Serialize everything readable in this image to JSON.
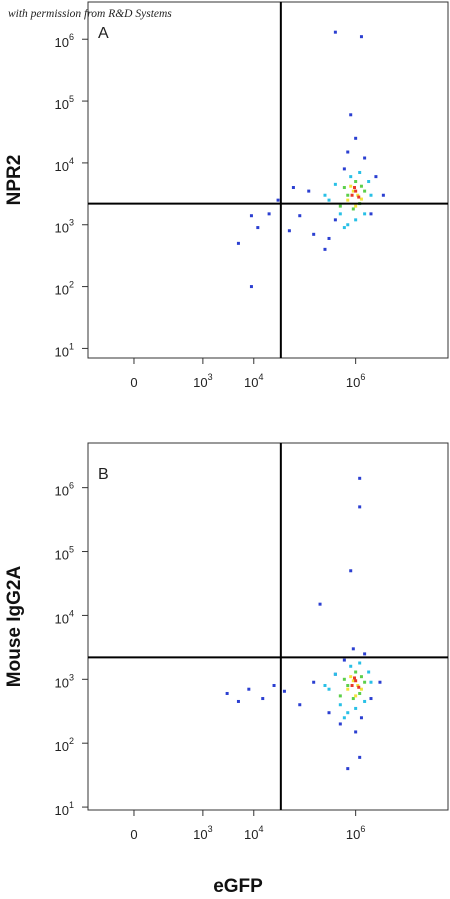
{
  "source_note": "with permission from R&D Systems",
  "chart_data": [
    {
      "type": "scatter",
      "label": "A",
      "y_label": "NPR2",
      "xscale": "asinh",
      "xscale_linear_width": 89,
      "yscale": "log",
      "xlim": [
        -350,
        65000000
      ],
      "ylim": [
        7,
        4000000
      ],
      "xticks": [
        0,
        {
          "value": 1000,
          "label": "10",
          "exponent": "3"
        },
        {
          "value": 10000,
          "label": "10",
          "exponent": "4"
        },
        {
          "value": 1000000,
          "label": "10",
          "exponent": "6"
        }
      ],
      "yticks": [
        {
          "value": 10,
          "label": "10",
          "exponent": "1"
        },
        {
          "value": 100,
          "label": "10",
          "exponent": "2"
        },
        {
          "value": 1000,
          "label": "10",
          "exponent": "3"
        },
        {
          "value": 10000,
          "label": "10",
          "exponent": "4"
        },
        {
          "value": 100000,
          "label": "10",
          "exponent": "5"
        },
        {
          "value": 1000000,
          "label": "10",
          "exponent": "6"
        }
      ],
      "quadrant_x": 34000,
      "quadrant_y": 2200,
      "series": [
        {
          "color": "#2b3fd1",
          "x": [
            9000,
            5000,
            12000,
            20000,
            30000,
            50000,
            80000,
            150000,
            250000,
            400000,
            600000,
            1500000,
            2500000,
            3500000,
            300000,
            700000,
            1000000,
            2000000,
            120000,
            800000,
            400000,
            1300000,
            60000,
            9000
          ],
          "y": [
            100,
            500,
            900,
            1500,
            2500,
            800,
            1400,
            700,
            400,
            1200,
            8000,
            12000,
            6000,
            3000,
            600,
            15000,
            25000,
            1500,
            3500,
            60000,
            1300000,
            1100000,
            4000,
            1400
          ]
        },
        {
          "color": "#29c0e6",
          "x": [
            300000,
            500000,
            700000,
            1000000,
            1500000,
            2000000,
            400000,
            800000,
            1200000,
            1800000,
            250000,
            600000
          ],
          "y": [
            2500,
            1500,
            1000,
            1200,
            1500,
            3000,
            4500,
            6000,
            7000,
            5000,
            3000,
            900
          ]
        },
        {
          "color": "#5ccf4a",
          "x": [
            500000,
            700000,
            900000,
            1200000,
            1500000,
            600000,
            1000000,
            1300000
          ],
          "y": [
            2000,
            3000,
            1800,
            2200,
            3500,
            4000,
            5000,
            4200
          ]
        },
        {
          "color": "#f2e33a",
          "x": [
            700000,
            900000,
            1100000,
            1300000,
            800000,
            1000000
          ],
          "y": [
            2500,
            3500,
            3000,
            2600,
            4200,
            2000
          ]
        },
        {
          "color": "#e8372a",
          "x": [
            850000,
            1000000,
            1150000,
            950000
          ],
          "y": [
            3000,
            3500,
            2800,
            4000
          ]
        }
      ]
    },
    {
      "type": "scatter",
      "label": "B",
      "y_label": "Mouse IgG2A",
      "x_label": "eGFP",
      "xscale": "asinh",
      "xscale_linear_width": 89,
      "yscale": "log",
      "xlim": [
        -350,
        65000000
      ],
      "ylim": [
        9,
        5000000
      ],
      "xticks": [
        0,
        {
          "value": 1000,
          "label": "10",
          "exponent": "3"
        },
        {
          "value": 10000,
          "label": "10",
          "exponent": "4"
        },
        {
          "value": 1000000,
          "label": "10",
          "exponent": "6"
        }
      ],
      "yticks": [
        {
          "value": 10,
          "label": "10",
          "exponent": "1"
        },
        {
          "value": 100,
          "label": "10",
          "exponent": "2"
        },
        {
          "value": 1000,
          "label": "10",
          "exponent": "3"
        },
        {
          "value": 10000,
          "label": "10",
          "exponent": "4"
        },
        {
          "value": 100000,
          "label": "10",
          "exponent": "5"
        },
        {
          "value": 1000000,
          "label": "10",
          "exponent": "6"
        }
      ],
      "quadrant_x": 34000,
      "quadrant_y": 2200,
      "series": [
        {
          "color": "#2b3fd1",
          "x": [
            3000,
            5000,
            8000,
            15000,
            25000,
            40000,
            80000,
            150000,
            300000,
            500000,
            1000000,
            2000000,
            3000000,
            700000,
            1200000,
            1200000,
            1200000,
            200000,
            800000,
            400000,
            1500000,
            900000,
            600000,
            1300000
          ],
          "y": [
            600,
            450,
            700,
            500,
            800,
            650,
            400,
            900,
            300,
            200,
            150,
            500,
            900,
            40,
            60,
            1400000,
            500000,
            15000,
            50000,
            1200,
            2500,
            3000,
            2000,
            250
          ]
        },
        {
          "color": "#29c0e6",
          "x": [
            300000,
            500000,
            700000,
            1000000,
            1500000,
            2000000,
            400000,
            800000,
            1200000,
            1800000,
            250000,
            600000
          ],
          "y": [
            700,
            400,
            300,
            350,
            450,
            900,
            1200,
            1600,
            1800,
            1300,
            800,
            250
          ]
        },
        {
          "color": "#5ccf4a",
          "x": [
            500000,
            700000,
            900000,
            1200000,
            1500000,
            600000,
            1000000,
            1300000
          ],
          "y": [
            550,
            800,
            500,
            600,
            900,
            1000,
            1300,
            1100
          ]
        },
        {
          "color": "#f2e33a",
          "x": [
            700000,
            900000,
            1100000,
            1300000,
            800000,
            1000000
          ],
          "y": [
            700,
            950,
            800,
            700,
            1100,
            550
          ]
        },
        {
          "color": "#e8372a",
          "x": [
            850000,
            1000000,
            1150000,
            950000
          ],
          "y": [
            800,
            950,
            750,
            1050
          ]
        }
      ]
    }
  ]
}
